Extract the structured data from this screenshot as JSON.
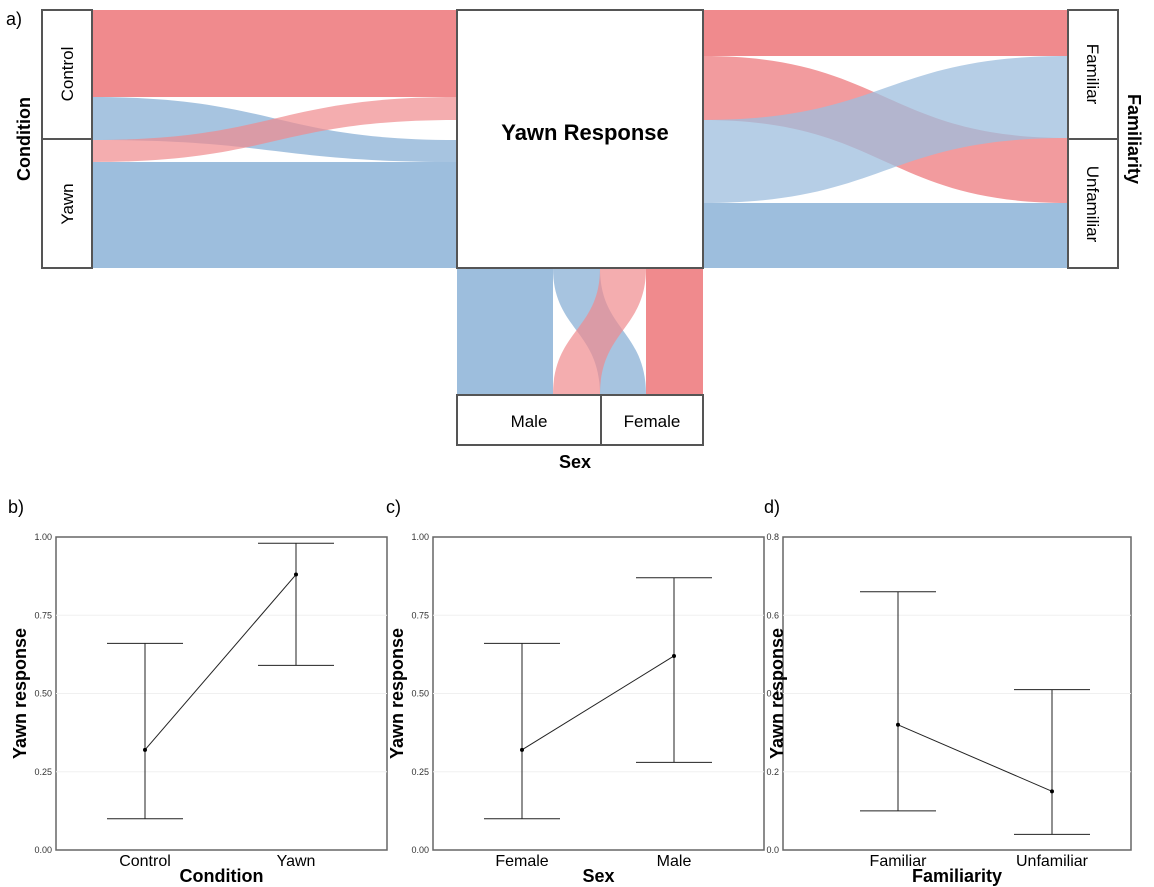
{
  "colors": {
    "blue": "#9dbedd",
    "red": "#f08a8d",
    "box_stroke": "#555555"
  },
  "alluvial": {
    "letter": "a)",
    "center_label": "Yawn Response",
    "left_axis": {
      "title": "Condition",
      "strata": [
        "Control",
        "Yawn"
      ]
    },
    "right_axis": {
      "title": "Familiarity",
      "strata": [
        "Familiar",
        "Unfamiliar"
      ]
    },
    "bottom_axis": {
      "title": "Sex",
      "strata": [
        "Male",
        "Female"
      ]
    }
  },
  "chart_data": [
    {
      "type": "line",
      "letter": "b)",
      "categories": [
        "Control",
        "Yawn"
      ],
      "values": [
        0.32,
        0.88
      ],
      "lower": [
        0.1,
        0.59
      ],
      "upper": [
        0.66,
        0.98
      ],
      "xlabel": "Condition",
      "ylabel": "Yawn response",
      "ylim": [
        0,
        1
      ],
      "yticks": [
        0,
        0.25,
        0.5,
        0.75,
        1
      ],
      "ytick_labels": [
        "0.00",
        "0.25",
        "0.50",
        "0.75",
        "1.00"
      ]
    },
    {
      "type": "line",
      "letter": "c)",
      "categories": [
        "Female",
        "Male"
      ],
      "values": [
        0.32,
        0.62
      ],
      "lower": [
        0.1,
        0.28
      ],
      "upper": [
        0.66,
        0.87
      ],
      "xlabel": "Sex",
      "ylabel": "Yawn response",
      "ylim": [
        0,
        1
      ],
      "yticks": [
        0,
        0.25,
        0.5,
        0.75,
        1
      ],
      "ytick_labels": [
        "0.00",
        "0.25",
        "0.50",
        "0.75",
        "1.00"
      ]
    },
    {
      "type": "line",
      "letter": "d)",
      "categories": [
        "Familiar",
        "Unfamiliar"
      ],
      "values": [
        0.32,
        0.15
      ],
      "lower": [
        0.1,
        0.04
      ],
      "upper": [
        0.66,
        0.41
      ],
      "xlabel": "Familiarity",
      "ylabel": "Yawn response",
      "ylim": [
        0,
        0.8
      ],
      "yticks": [
        0,
        0.2,
        0.4,
        0.6,
        0.8
      ],
      "ytick_labels": [
        "0.0",
        "0.2",
        "0.4",
        "0.6",
        "0.8"
      ]
    }
  ]
}
